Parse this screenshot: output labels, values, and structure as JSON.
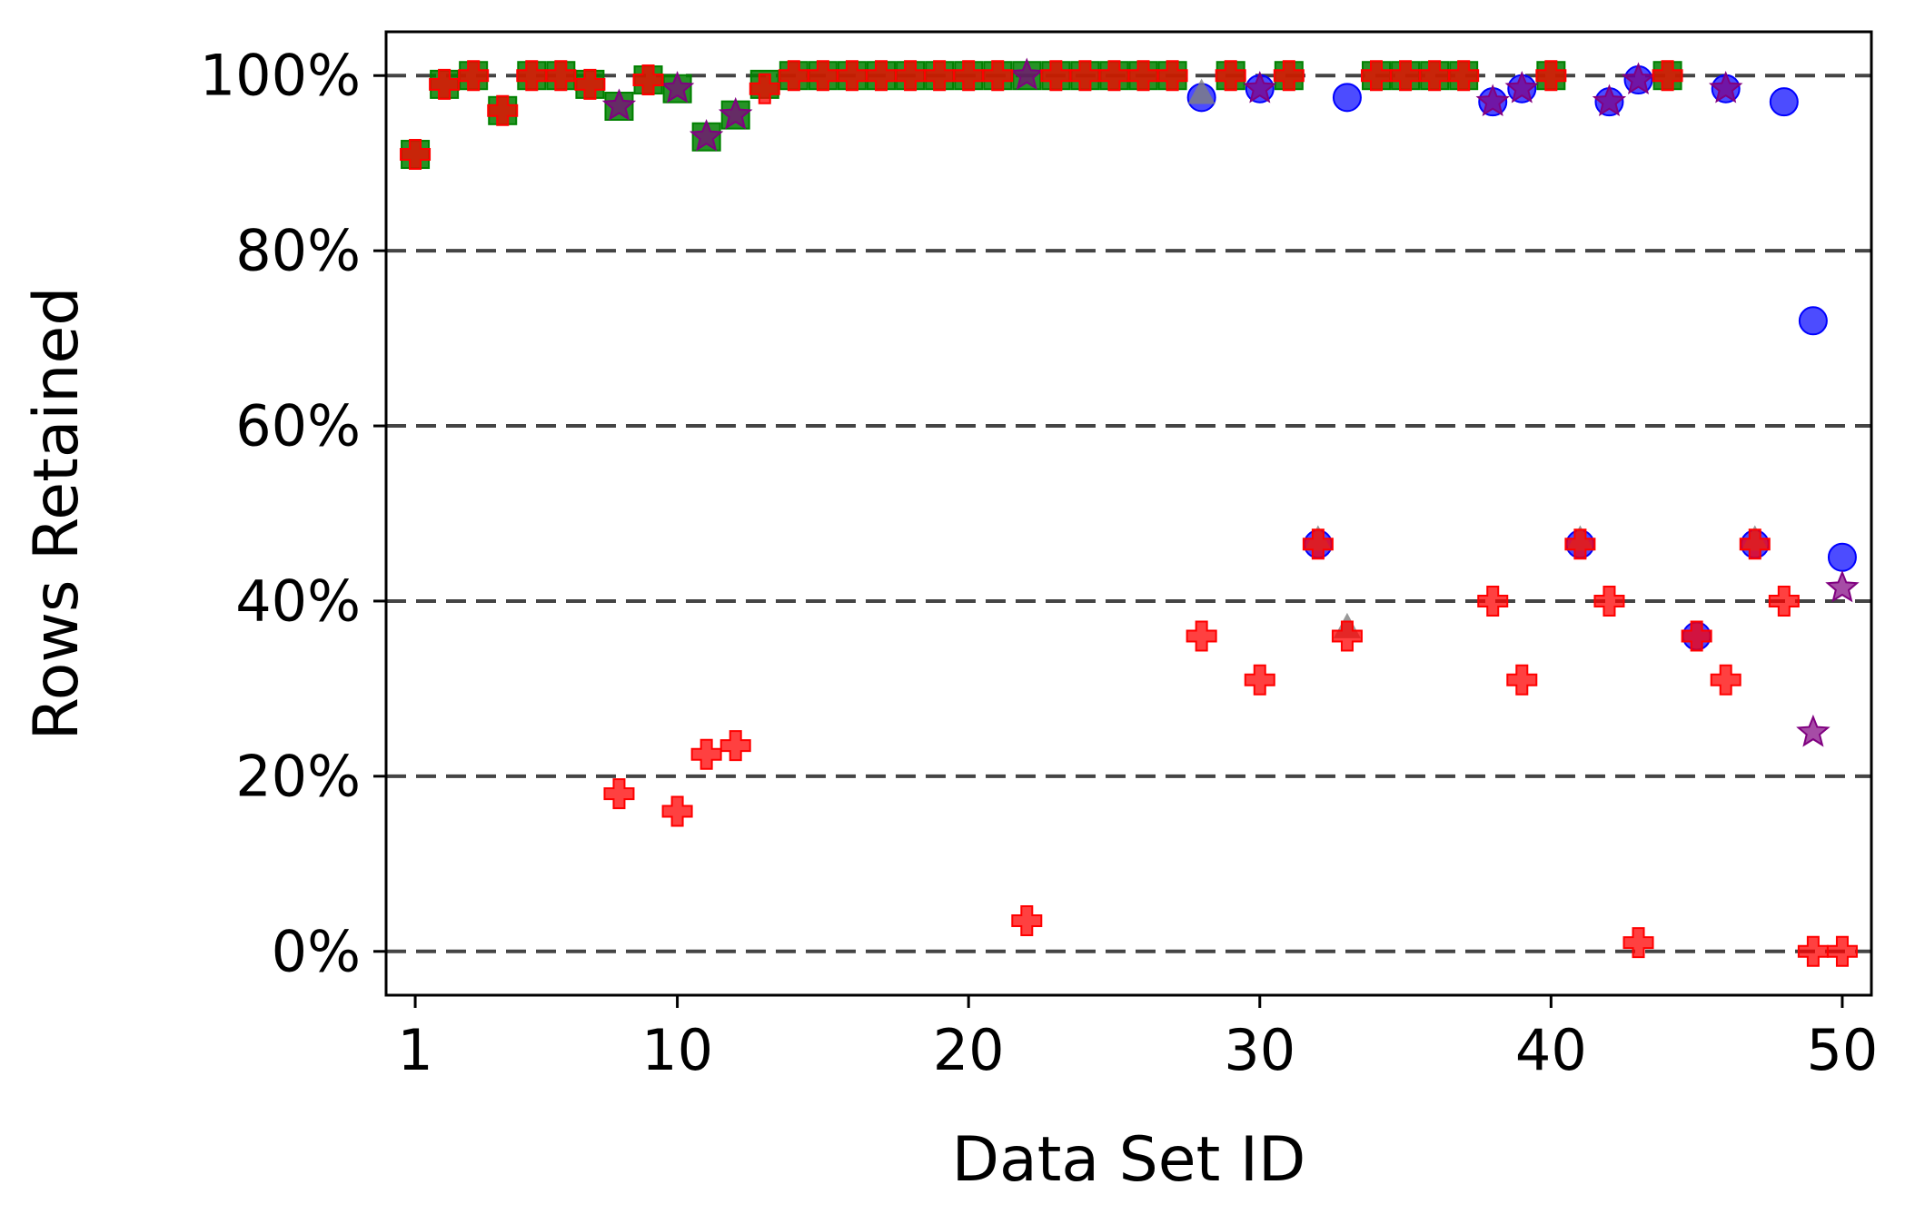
{
  "chart_data": {
    "type": "scatter",
    "xlabel": "Data Set ID",
    "ylabel": "Rows Retained",
    "xlim": [
      0,
      51
    ],
    "ylim": [
      -5,
      105
    ],
    "x_ticks": [
      1,
      10,
      20,
      30,
      40,
      50
    ],
    "y_ticks": [
      0,
      20,
      40,
      60,
      80,
      100
    ],
    "y_tick_labels": [
      "0%",
      "20%",
      "40%",
      "60%",
      "80%",
      "100%"
    ],
    "grid": "horizontal dashed at y ticks",
    "legend": "none",
    "series": [
      {
        "marker": "circle",
        "color": "#0000ff",
        "points": [
          [
            28,
            97.5
          ],
          [
            30,
            98.5
          ],
          [
            32,
            46.5
          ],
          [
            33,
            97.5
          ],
          [
            38,
            97
          ],
          [
            39,
            98.5
          ],
          [
            41,
            46.5
          ],
          [
            42,
            97
          ],
          [
            43,
            99.5
          ],
          [
            45,
            36
          ],
          [
            46,
            98.5
          ],
          [
            47,
            46.5
          ],
          [
            48,
            97
          ],
          [
            49,
            72
          ],
          [
            50,
            45
          ]
        ]
      },
      {
        "marker": "square",
        "color": "#008000",
        "points": [
          [
            1,
            91
          ],
          [
            2,
            99
          ],
          [
            3,
            100
          ],
          [
            4,
            96
          ],
          [
            5,
            100
          ],
          [
            6,
            100
          ],
          [
            7,
            99
          ],
          [
            8,
            96.5
          ],
          [
            9,
            99.5
          ],
          [
            10,
            98.5
          ],
          [
            11,
            93
          ],
          [
            12,
            95.5
          ],
          [
            13,
            99
          ],
          [
            14,
            100
          ],
          [
            15,
            100
          ],
          [
            16,
            100
          ],
          [
            17,
            100
          ],
          [
            18,
            100
          ],
          [
            19,
            100
          ],
          [
            20,
            100
          ],
          [
            21,
            100
          ],
          [
            22,
            100
          ],
          [
            23,
            100
          ],
          [
            24,
            100
          ],
          [
            25,
            100
          ],
          [
            26,
            100
          ],
          [
            27,
            100
          ],
          [
            29,
            100
          ],
          [
            31,
            100
          ],
          [
            34,
            100
          ],
          [
            35,
            100
          ],
          [
            36,
            100
          ],
          [
            37,
            100
          ],
          [
            40,
            100
          ],
          [
            44,
            100
          ]
        ]
      },
      {
        "marker": "triangle",
        "color": "#808080",
        "points": [
          [
            28,
            98
          ],
          [
            32,
            47
          ],
          [
            33,
            37
          ],
          [
            41,
            47
          ],
          [
            47,
            47
          ]
        ]
      },
      {
        "marker": "star",
        "color": "#800080",
        "points": [
          [
            8,
            96.5
          ],
          [
            10,
            98.5
          ],
          [
            11,
            93
          ],
          [
            12,
            95.5
          ],
          [
            22,
            100
          ],
          [
            30,
            98.5
          ],
          [
            38,
            97
          ],
          [
            39,
            98.5
          ],
          [
            42,
            97
          ],
          [
            43,
            99.5
          ],
          [
            46,
            98.5
          ],
          [
            49,
            25
          ],
          [
            50,
            41.5
          ]
        ]
      },
      {
        "marker": "plus",
        "color": "#ff0000",
        "points": [
          [
            1,
            91
          ],
          [
            2,
            99
          ],
          [
            3,
            100
          ],
          [
            4,
            96
          ],
          [
            5,
            100
          ],
          [
            6,
            100
          ],
          [
            7,
            99
          ],
          [
            8,
            18
          ],
          [
            9,
            99.5
          ],
          [
            10,
            16
          ],
          [
            11,
            22.5
          ],
          [
            12,
            23.5
          ],
          [
            13,
            98.5
          ],
          [
            14,
            100
          ],
          [
            15,
            100
          ],
          [
            16,
            100
          ],
          [
            17,
            100
          ],
          [
            18,
            100
          ],
          [
            19,
            100
          ],
          [
            20,
            100
          ],
          [
            21,
            100
          ],
          [
            22,
            3.5
          ],
          [
            23,
            100
          ],
          [
            24,
            100
          ],
          [
            25,
            100
          ],
          [
            26,
            100
          ],
          [
            27,
            100
          ],
          [
            28,
            36
          ],
          [
            29,
            100
          ],
          [
            30,
            31
          ],
          [
            31,
            100
          ],
          [
            32,
            46.5
          ],
          [
            33,
            36
          ],
          [
            34,
            100
          ],
          [
            35,
            100
          ],
          [
            36,
            100
          ],
          [
            37,
            100
          ],
          [
            38,
            40
          ],
          [
            39,
            31
          ],
          [
            40,
            100
          ],
          [
            41,
            46.5
          ],
          [
            42,
            40
          ],
          [
            43,
            1
          ],
          [
            44,
            100
          ],
          [
            45,
            36
          ],
          [
            46,
            31
          ],
          [
            47,
            46.5
          ],
          [
            48,
            40
          ],
          [
            49,
            0
          ],
          [
            50,
            0
          ]
        ]
      }
    ]
  }
}
